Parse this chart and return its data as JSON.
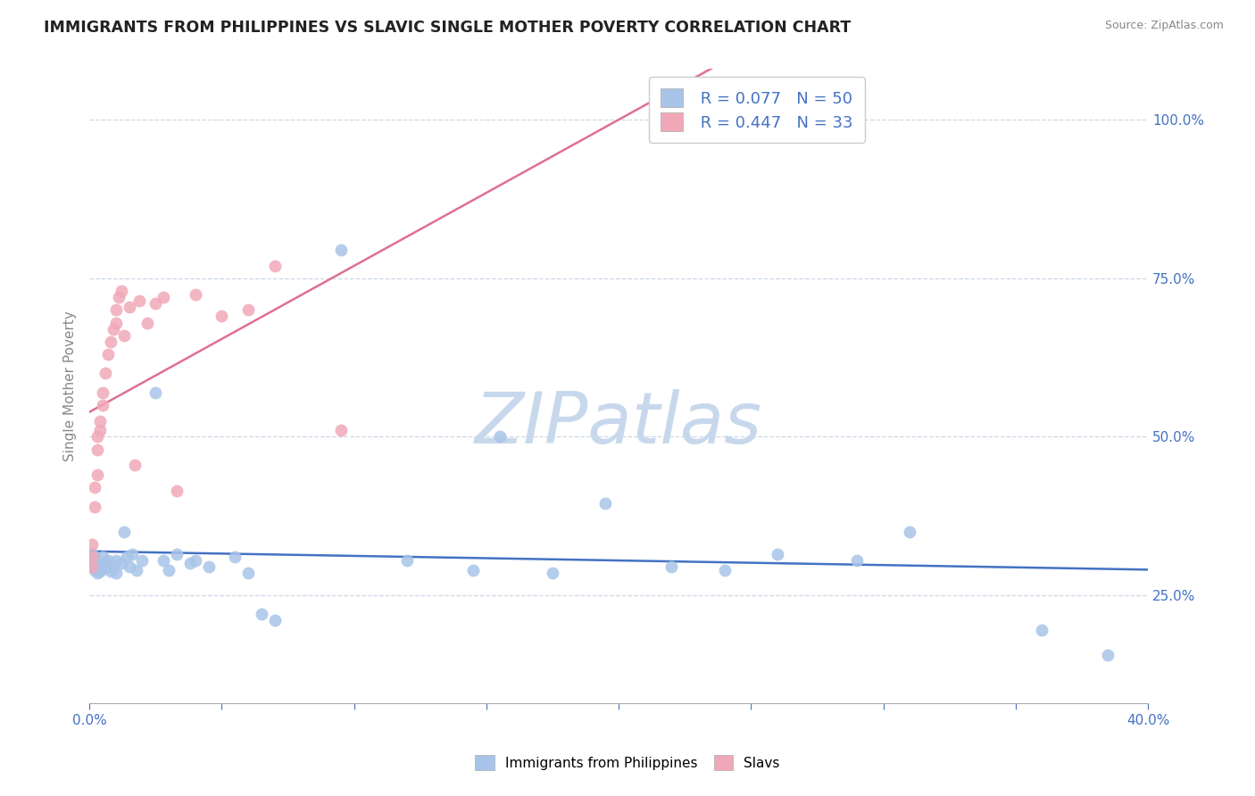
{
  "title": "IMMIGRANTS FROM PHILIPPINES VS SLAVIC SINGLE MOTHER POVERTY CORRELATION CHART",
  "source": "Source: ZipAtlas.com",
  "ylabel": "Single Mother Poverty",
  "xlim": [
    0.0,
    0.4
  ],
  "ylim": [
    0.08,
    1.08
  ],
  "xticks": [
    0.0,
    0.05,
    0.1,
    0.15,
    0.2,
    0.25,
    0.3,
    0.35,
    0.4
  ],
  "yticks_right": [
    0.25,
    0.5,
    0.75,
    1.0
  ],
  "blue_R": 0.077,
  "blue_N": 50,
  "pink_R": 0.447,
  "pink_N": 33,
  "blue_color": "#a8c4e8",
  "pink_color": "#f0a8b8",
  "blue_line_color": "#4472c4",
  "pink_line_color": "#e07090",
  "watermark": "ZIPatlas",
  "watermark_color": "#c8d8ec",
  "blue_x": [
    0.001,
    0.001,
    0.001,
    0.002,
    0.002,
    0.002,
    0.003,
    0.003,
    0.004,
    0.004,
    0.005,
    0.005,
    0.006,
    0.006,
    0.007,
    0.008,
    0.009,
    0.01,
    0.01,
    0.012,
    0.013,
    0.014,
    0.015,
    0.016,
    0.018,
    0.02,
    0.025,
    0.028,
    0.03,
    0.033,
    0.038,
    0.04,
    0.045,
    0.055,
    0.06,
    0.065,
    0.07,
    0.095,
    0.12,
    0.145,
    0.155,
    0.175,
    0.195,
    0.22,
    0.24,
    0.26,
    0.29,
    0.31,
    0.36,
    0.385
  ],
  "blue_y": [
    0.295,
    0.305,
    0.315,
    0.29,
    0.3,
    0.31,
    0.285,
    0.295,
    0.288,
    0.298,
    0.31,
    0.292,
    0.3,
    0.295,
    0.305,
    0.288,
    0.295,
    0.285,
    0.305,
    0.3,
    0.35,
    0.31,
    0.295,
    0.315,
    0.29,
    0.305,
    0.57,
    0.305,
    0.29,
    0.315,
    0.3,
    0.305,
    0.295,
    0.31,
    0.285,
    0.22,
    0.21,
    0.795,
    0.305,
    0.29,
    0.5,
    0.285,
    0.395,
    0.295,
    0.29,
    0.315,
    0.305,
    0.35,
    0.195,
    0.155
  ],
  "pink_x": [
    0.001,
    0.001,
    0.001,
    0.002,
    0.002,
    0.003,
    0.003,
    0.003,
    0.004,
    0.004,
    0.005,
    0.005,
    0.006,
    0.007,
    0.008,
    0.009,
    0.01,
    0.01,
    0.011,
    0.012,
    0.013,
    0.015,
    0.017,
    0.019,
    0.022,
    0.025,
    0.028,
    0.033,
    0.04,
    0.05,
    0.06,
    0.07,
    0.095
  ],
  "pink_y": [
    0.295,
    0.31,
    0.33,
    0.39,
    0.42,
    0.44,
    0.48,
    0.5,
    0.51,
    0.525,
    0.55,
    0.57,
    0.6,
    0.63,
    0.65,
    0.67,
    0.68,
    0.7,
    0.72,
    0.73,
    0.66,
    0.705,
    0.455,
    0.715,
    0.68,
    0.71,
    0.72,
    0.415,
    0.725,
    0.69,
    0.7,
    0.77,
    0.51
  ]
}
